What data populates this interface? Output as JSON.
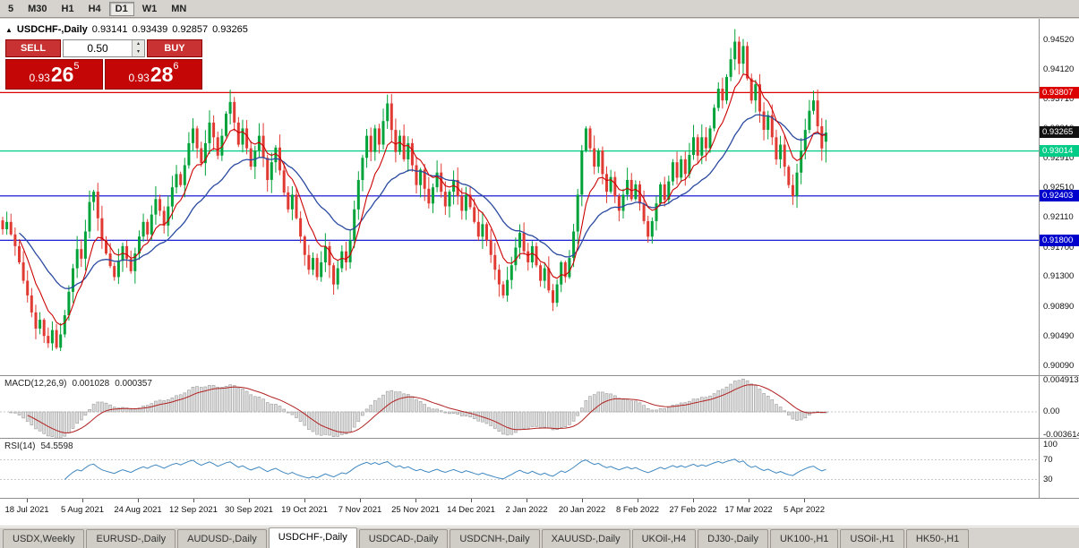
{
  "toolbar": {
    "timeframes": [
      "5",
      "M30",
      "H1",
      "H4",
      "D1",
      "W1",
      "MN"
    ],
    "active": "D1"
  },
  "chart": {
    "collapse_icon": "▲",
    "title_symbol": "USDCHF-,Daily",
    "ohlc": {
      "open": "0.93141",
      "high": "0.93439",
      "low": "0.92857",
      "close": "0.93265"
    },
    "levels": [
      {
        "label": "0.93807",
        "price": 0.93807,
        "color": "#dd0000",
        "line": true
      },
      {
        "label": "0.93265",
        "price": 0.93265,
        "color": "#111111",
        "line": false
      },
      {
        "label": "0.93014",
        "price": 0.93014,
        "color": "#00cc88",
        "line": true
      },
      {
        "label": "0.92403",
        "price": 0.92403,
        "color": "#0000cd",
        "line": true
      },
      {
        "label": "0.91800",
        "price": 0.918,
        "color": "#0000cd",
        "line": true
      }
    ],
    "y_axis_ticks": [
      "0.94520",
      "0.94120",
      "0.93710",
      "0.93310",
      "0.92910",
      "0.92510",
      "0.92110",
      "0.91700",
      "0.91300",
      "0.90890",
      "0.90490",
      "0.90090"
    ],
    "x_axis_labels": [
      "18 Jul 2021",
      "5 Aug 2021",
      "24 Aug 2021",
      "12 Sep 2021",
      "30 Sep 2021",
      "19 Oct 2021",
      "7 Nov 2021",
      "25 Nov 2021",
      "14 Dec 2021",
      "2 Jan 2022",
      "20 Jan 2022",
      "8 Feb 2022",
      "27 Feb 2022",
      "17 Mar 2022",
      "5 Apr 2022"
    ]
  },
  "trade": {
    "sell_label": "SELL",
    "buy_label": "BUY",
    "volume": "0.50",
    "spinner_up_icon": "▴",
    "spinner_down_icon": "▾",
    "sell_price_small": "0.93",
    "sell_price_big": "26",
    "sell_price_sup": "5",
    "buy_price_small": "0.93",
    "buy_price_big": "28",
    "buy_price_sup": "6"
  },
  "macd": {
    "label": "MACD(12,26,9)",
    "value1": "0.001028",
    "value2": "0.000357",
    "axis": [
      "0.004913",
      "0.00",
      "-0.003614"
    ]
  },
  "rsi": {
    "label": "RSI(14)",
    "value": "54.5598",
    "axis": [
      "100",
      "70",
      "30"
    ]
  },
  "tabs": {
    "items": [
      "USDX,Weekly",
      "EURUSD-,Daily",
      "AUDUSD-,Daily",
      "USDCHF-,Daily",
      "USDCAD-,Daily",
      "USDCNH-,Daily",
      "XAUUSD-,Daily",
      "UKOil-,H4",
      "DJ30-,Daily",
      "UK100-,H1",
      "USOil-,H1",
      "HK50-,H1"
    ],
    "active": "USDCHF-,Daily"
  },
  "colors": {
    "candle_up": "#00a33a",
    "candle_down": "#e03a32",
    "ma_fast": "#cc0000",
    "ma_slow": "#2b4aa0",
    "macd_signal": "#b22222",
    "rsi": "#3f87c0",
    "level_red": "#dd0000",
    "level_green": "#00cc88",
    "level_blue": "#0000cd",
    "current_price_tag": "#111111"
  },
  "chart_data": {
    "type": "candlestick",
    "title": "USDCHF-,Daily",
    "symbol": "USDCHF",
    "timeframe": "Daily",
    "y_range": [
      0.8998,
      0.9481
    ],
    "last_ohlc": {
      "open": 0.93141,
      "high": 0.93439,
      "low": 0.92857,
      "close": 0.93265
    },
    "closes": [
      0.9195,
      0.9205,
      0.9188,
      0.9172,
      0.915,
      0.9125,
      0.9105,
      0.9082,
      0.906,
      0.9072,
      0.905,
      0.904,
      0.9058,
      0.9034,
      0.9052,
      0.9078,
      0.911,
      0.9142,
      0.9168,
      0.9155,
      0.9192,
      0.9232,
      0.9246,
      0.921,
      0.918,
      0.9162,
      0.9145,
      0.913,
      0.9152,
      0.9172,
      0.9155,
      0.9138,
      0.9162,
      0.9185,
      0.9205,
      0.9188,
      0.9215,
      0.9236,
      0.922,
      0.92,
      0.9226,
      0.9252,
      0.927,
      0.9255,
      0.9282,
      0.9312,
      0.9332,
      0.9305,
      0.9285,
      0.9312,
      0.934,
      0.932,
      0.9295,
      0.9322,
      0.9352,
      0.9368,
      0.934,
      0.931,
      0.9332,
      0.9305,
      0.928,
      0.9302,
      0.9322,
      0.9292,
      0.9262,
      0.9286,
      0.9306,
      0.9275,
      0.9245,
      0.9222,
      0.9242,
      0.921,
      0.9185,
      0.916,
      0.914,
      0.9156,
      0.913,
      0.915,
      0.9172,
      0.9146,
      0.912,
      0.9142,
      0.9165,
      0.915,
      0.918,
      0.9222,
      0.9262,
      0.9292,
      0.9322,
      0.93,
      0.9332,
      0.931,
      0.9342,
      0.9366,
      0.933,
      0.93,
      0.9322,
      0.929,
      0.9312,
      0.9282,
      0.9255,
      0.9276,
      0.925,
      0.923,
      0.9252,
      0.9272,
      0.9246,
      0.9226,
      0.9246,
      0.9262,
      0.924,
      0.922,
      0.9242,
      0.9225,
      0.9205,
      0.9185,
      0.9202,
      0.918,
      0.916,
      0.914,
      0.912,
      0.9105,
      0.9126,
      0.9146,
      0.917,
      0.919,
      0.9165,
      0.915,
      0.9172,
      0.9146,
      0.9125,
      0.9142,
      0.9112,
      0.9095,
      0.912,
      0.915,
      0.913,
      0.9156,
      0.9192,
      0.9242,
      0.9302,
      0.9332,
      0.9305,
      0.928,
      0.9302,
      0.927,
      0.9246,
      0.9266,
      0.924,
      0.922,
      0.9242,
      0.9262,
      0.9236,
      0.9256,
      0.923,
      0.9206,
      0.9185,
      0.9206,
      0.923,
      0.9256,
      0.9235,
      0.926,
      0.9286,
      0.9265,
      0.929,
      0.927,
      0.9296,
      0.932,
      0.9295,
      0.932,
      0.9305,
      0.9332,
      0.936,
      0.9386,
      0.937,
      0.9402,
      0.9426,
      0.945,
      0.942,
      0.9444,
      0.94,
      0.937,
      0.9392,
      0.9355,
      0.933,
      0.935,
      0.932,
      0.929,
      0.931,
      0.928,
      0.9255,
      0.924,
      0.9272,
      0.9302,
      0.933,
      0.9356,
      0.937,
      0.9335,
      0.9305,
      0.93265
    ]
  }
}
